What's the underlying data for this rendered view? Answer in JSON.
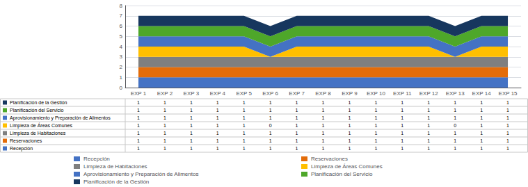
{
  "chart_data": {
    "type": "area",
    "stacked": true,
    "grid": true,
    "legend": "bottom",
    "categories": [
      "EXP 1",
      "EXP 2",
      "EXP 3",
      "EXP 4",
      "EXP 5",
      "EXP 6",
      "EXP 7",
      "EXP 8",
      "EXP 9",
      "EXP 10",
      "EXP 11",
      "EXP 12",
      "EXP 13",
      "EXP 14",
      "EXP 15"
    ],
    "series": [
      {
        "name": "Recepción",
        "color": "#4472C4",
        "values": [
          1,
          1,
          1,
          1,
          1,
          1,
          1,
          1,
          1,
          1,
          1,
          1,
          1,
          1,
          1
        ]
      },
      {
        "name": "Reservaciones",
        "color": "#E36C09",
        "values": [
          1,
          1,
          1,
          1,
          1,
          1,
          1,
          1,
          1,
          1,
          1,
          1,
          1,
          1,
          1
        ]
      },
      {
        "name": "Limpieza de Habitaciones",
        "color": "#7F7F7F",
        "values": [
          1,
          1,
          1,
          1,
          1,
          1,
          1,
          1,
          1,
          1,
          1,
          1,
          1,
          1,
          1
        ]
      },
      {
        "name": "Limpieza de Áreas Comunes",
        "color": "#FFBF00",
        "values": [
          1,
          1,
          1,
          1,
          1,
          0,
          1,
          1,
          1,
          1,
          1,
          1,
          0,
          1,
          1
        ]
      },
      {
        "name": "Aprovisionamiento y Preparación de Alimentos",
        "color": "#4472C4",
        "values": [
          1,
          1,
          1,
          1,
          1,
          1,
          1,
          1,
          1,
          1,
          1,
          1,
          1,
          1,
          1
        ]
      },
      {
        "name": "Planificación del Servicio",
        "color": "#4EA72A",
        "values": [
          1,
          1,
          1,
          1,
          1,
          1,
          1,
          1,
          1,
          1,
          1,
          1,
          1,
          1,
          1
        ]
      },
      {
        "name": "Planificación de la Gestión",
        "color": "#17375E",
        "values": [
          1,
          1,
          1,
          1,
          1,
          1,
          1,
          1,
          1,
          1,
          1,
          1,
          1,
          1,
          1
        ]
      }
    ],
    "ylim": [
      0,
      8
    ],
    "yticks": [
      0,
      1,
      2,
      3,
      4,
      5,
      6,
      7,
      8
    ]
  }
}
